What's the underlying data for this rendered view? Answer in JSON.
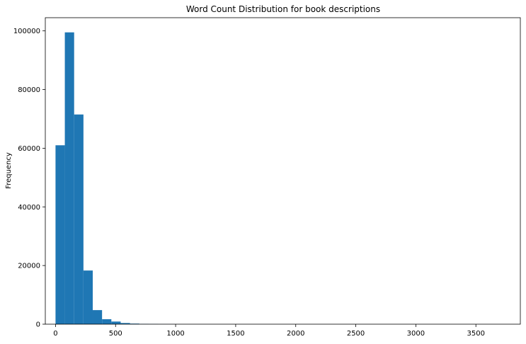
{
  "chart_data": {
    "type": "bar",
    "title": "Word Count Distribution for book descriptions",
    "xlabel": "",
    "ylabel": "Frequency",
    "xlim": [
      -85,
      3870
    ],
    "ylim": [
      0,
      104500
    ],
    "x_ticks": [
      0,
      500,
      1000,
      1500,
      2000,
      2500,
      3000,
      3500
    ],
    "y_ticks": [
      0,
      20000,
      40000,
      60000,
      80000,
      100000
    ],
    "grid": false,
    "legend": "none",
    "bin_width": 77.5,
    "bins": [
      {
        "start": 0,
        "count": 61000
      },
      {
        "start": 77.5,
        "count": 99500
      },
      {
        "start": 155,
        "count": 71500
      },
      {
        "start": 232.5,
        "count": 18300
      },
      {
        "start": 310,
        "count": 4800
      },
      {
        "start": 387.5,
        "count": 1700
      },
      {
        "start": 465,
        "count": 900
      },
      {
        "start": 542.5,
        "count": 400
      },
      {
        "start": 620,
        "count": 200
      },
      {
        "start": 697.5,
        "count": 100
      },
      {
        "start": 775,
        "count": 60
      },
      {
        "start": 852.5,
        "count": 30
      },
      {
        "start": 930,
        "count": 20
      },
      {
        "start": 1007.5,
        "count": 10
      },
      {
        "start": 1085,
        "count": 5
      }
    ]
  },
  "colors": {
    "bar": "#1f77b4",
    "axis": "#000000",
    "background": "#ffffff"
  }
}
